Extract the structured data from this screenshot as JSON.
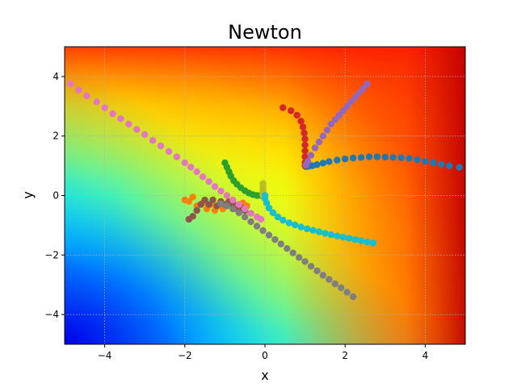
{
  "chart_data": {
    "type": "scatter",
    "title": "Newton",
    "xlabel": "x",
    "ylabel": "y",
    "xlim": [
      -5,
      5
    ],
    "ylim": [
      -5,
      5
    ],
    "xticks": [
      -4,
      -2,
      0,
      2,
      4
    ],
    "yticks": [
      -4,
      -2,
      0,
      2,
      4
    ],
    "xtick_labels": [
      "−4",
      "−2",
      "0",
      "2",
      "4"
    ],
    "ytick_labels": [
      "−4",
      "−2",
      "0",
      "2",
      "4"
    ],
    "grid": true,
    "background": "filled contour, colormap jet (blue → cyan → green → yellow → red), lowest values bottom-left, highest values along the right edge and top",
    "series": [
      {
        "color": "#1f77b4",
        "points": [
          [
            4.85,
            0.95
          ],
          [
            4.6,
            1.0
          ],
          [
            4.4,
            1.05
          ],
          [
            4.2,
            1.1
          ],
          [
            4.0,
            1.15
          ],
          [
            3.8,
            1.2
          ],
          [
            3.6,
            1.25
          ],
          [
            3.4,
            1.27
          ],
          [
            3.2,
            1.28
          ],
          [
            3.0,
            1.29
          ],
          [
            2.8,
            1.3
          ],
          [
            2.6,
            1.3
          ],
          [
            2.4,
            1.28
          ],
          [
            2.2,
            1.26
          ],
          [
            2.0,
            1.23
          ],
          [
            1.8,
            1.19
          ],
          [
            1.6,
            1.14
          ],
          [
            1.45,
            1.09
          ],
          [
            1.3,
            1.04
          ],
          [
            1.18,
            1.0
          ],
          [
            1.08,
            0.98
          ],
          [
            1.02,
            0.97
          ]
        ]
      },
      {
        "color": "#ff7f0e",
        "points": [
          [
            -2.0,
            -0.15
          ],
          [
            -1.9,
            -0.2
          ],
          [
            -1.8,
            -0.05
          ],
          [
            -1.7,
            -0.35
          ],
          [
            -1.55,
            -0.25
          ],
          [
            -1.45,
            -0.45
          ],
          [
            -1.35,
            -0.3
          ],
          [
            -1.25,
            -0.5
          ],
          [
            -1.15,
            -0.3
          ],
          [
            -1.05,
            -0.45
          ],
          [
            -0.95,
            -0.3
          ],
          [
            -0.85,
            -0.2
          ],
          [
            -0.75,
            -0.3
          ],
          [
            -0.65,
            -0.35
          ],
          [
            -0.55,
            -0.25
          ],
          [
            -0.45,
            -0.35
          ]
        ]
      },
      {
        "color": "#2ca02c",
        "points": [
          [
            -1.0,
            1.1
          ],
          [
            -0.95,
            0.95
          ],
          [
            -0.9,
            0.8
          ],
          [
            -0.85,
            0.65
          ],
          [
            -0.78,
            0.5
          ],
          [
            -0.7,
            0.38
          ],
          [
            -0.6,
            0.26
          ],
          [
            -0.5,
            0.16
          ],
          [
            -0.4,
            0.08
          ],
          [
            -0.3,
            0.03
          ],
          [
            -0.2,
            0.0
          ],
          [
            -0.1,
            0.0
          ]
        ]
      },
      {
        "color": "#d62728",
        "points": [
          [
            0.45,
            2.95
          ],
          [
            0.65,
            2.85
          ],
          [
            0.8,
            2.7
          ],
          [
            0.9,
            2.5
          ],
          [
            0.95,
            2.3
          ],
          [
            0.98,
            2.1
          ],
          [
            1.0,
            1.9
          ],
          [
            1.0,
            1.7
          ],
          [
            1.0,
            1.5
          ],
          [
            1.0,
            1.3
          ],
          [
            1.0,
            1.1
          ],
          [
            1.0,
            1.0
          ]
        ]
      },
      {
        "color": "#9467bd",
        "points": [
          [
            2.55,
            3.75
          ],
          [
            2.45,
            3.6
          ],
          [
            2.35,
            3.45
          ],
          [
            2.25,
            3.3
          ],
          [
            2.15,
            3.15
          ],
          [
            2.05,
            3.0
          ],
          [
            1.95,
            2.85
          ],
          [
            1.85,
            2.7
          ],
          [
            1.75,
            2.55
          ],
          [
            1.65,
            2.4
          ],
          [
            1.55,
            2.2
          ],
          [
            1.45,
            2.0
          ],
          [
            1.35,
            1.8
          ],
          [
            1.25,
            1.6
          ],
          [
            1.15,
            1.35
          ],
          [
            1.07,
            1.15
          ],
          [
            1.02,
            1.02
          ]
        ]
      },
      {
        "color": "#8c564b",
        "points": [
          [
            -1.9,
            -0.8
          ],
          [
            -1.8,
            -0.7
          ],
          [
            -1.7,
            -0.5
          ],
          [
            -1.6,
            -0.3
          ],
          [
            -1.5,
            -0.15
          ],
          [
            -1.4,
            -0.3
          ],
          [
            -1.3,
            -0.15
          ],
          [
            -1.2,
            -0.35
          ],
          [
            -1.1,
            -0.2
          ],
          [
            -1.0,
            -0.3
          ],
          [
            -0.9,
            -0.2
          ],
          [
            -0.8,
            -0.3
          ],
          [
            -0.7,
            -0.45
          ],
          [
            -0.6,
            -0.4
          ],
          [
            -0.5,
            -0.5
          ]
        ]
      },
      {
        "color": "#e377c2",
        "points": [
          [
            -4.85,
            3.75
          ],
          [
            -4.65,
            3.55
          ],
          [
            -4.45,
            3.35
          ],
          [
            -4.2,
            3.15
          ],
          [
            -4.0,
            2.95
          ],
          [
            -3.8,
            2.75
          ],
          [
            -3.6,
            2.58
          ],
          [
            -3.4,
            2.4
          ],
          [
            -3.2,
            2.22
          ],
          [
            -3.0,
            2.05
          ],
          [
            -2.8,
            1.85
          ],
          [
            -2.6,
            1.67
          ],
          [
            -2.4,
            1.48
          ],
          [
            -2.2,
            1.3
          ],
          [
            -2.0,
            1.1
          ],
          [
            -1.85,
            0.95
          ],
          [
            -1.7,
            0.8
          ],
          [
            -1.55,
            0.63
          ],
          [
            -1.4,
            0.47
          ],
          [
            -1.25,
            0.3
          ],
          [
            -1.1,
            0.15
          ],
          [
            -0.95,
            0.0
          ],
          [
            -0.8,
            -0.15
          ],
          [
            -0.65,
            -0.3
          ],
          [
            -0.5,
            -0.45
          ],
          [
            -0.35,
            -0.6
          ],
          [
            -0.2,
            -0.72
          ],
          [
            -0.1,
            -0.8
          ]
        ]
      },
      {
        "color": "#7f7f7f",
        "points": [
          [
            2.2,
            -3.4
          ],
          [
            2.05,
            -3.25
          ],
          [
            1.9,
            -3.1
          ],
          [
            1.75,
            -2.97
          ],
          [
            1.6,
            -2.82
          ],
          [
            1.45,
            -2.68
          ],
          [
            1.3,
            -2.53
          ],
          [
            1.15,
            -2.38
          ],
          [
            1.0,
            -2.22
          ],
          [
            0.85,
            -2.08
          ],
          [
            0.7,
            -1.93
          ],
          [
            0.55,
            -1.78
          ],
          [
            0.4,
            -1.63
          ],
          [
            0.25,
            -1.48
          ],
          [
            0.1,
            -1.33
          ],
          [
            -0.05,
            -1.18
          ],
          [
            -0.2,
            -1.03
          ],
          [
            -0.35,
            -0.88
          ],
          [
            -0.5,
            -0.72
          ],
          [
            -0.65,
            -0.58
          ],
          [
            -0.8,
            -0.45
          ],
          [
            -0.95,
            -0.35
          ],
          [
            -1.1,
            -0.28
          ]
        ]
      },
      {
        "color": "#bcbd22",
        "points": [
          [
            -0.05,
            0.4
          ],
          [
            -0.05,
            0.3
          ],
          [
            -0.05,
            0.22
          ],
          [
            -0.05,
            0.15
          ],
          [
            -0.05,
            0.08
          ],
          [
            -0.05,
            0.03
          ],
          [
            -0.05,
            0.0
          ]
        ]
      },
      {
        "color": "#17becf",
        "points": [
          [
            2.7,
            -1.6
          ],
          [
            2.55,
            -1.56
          ],
          [
            2.4,
            -1.52
          ],
          [
            2.25,
            -1.48
          ],
          [
            2.1,
            -1.44
          ],
          [
            1.95,
            -1.4
          ],
          [
            1.8,
            -1.36
          ],
          [
            1.65,
            -1.32
          ],
          [
            1.5,
            -1.27
          ],
          [
            1.35,
            -1.22
          ],
          [
            1.2,
            -1.17
          ],
          [
            1.05,
            -1.12
          ],
          [
            0.9,
            -1.06
          ],
          [
            0.75,
            -0.99
          ],
          [
            0.6,
            -0.92
          ],
          [
            0.45,
            -0.83
          ],
          [
            0.32,
            -0.72
          ],
          [
            0.2,
            -0.58
          ],
          [
            0.1,
            -0.42
          ],
          [
            0.04,
            -0.25
          ],
          [
            0.0,
            -0.1
          ],
          [
            0.0,
            0.0
          ]
        ]
      }
    ]
  }
}
